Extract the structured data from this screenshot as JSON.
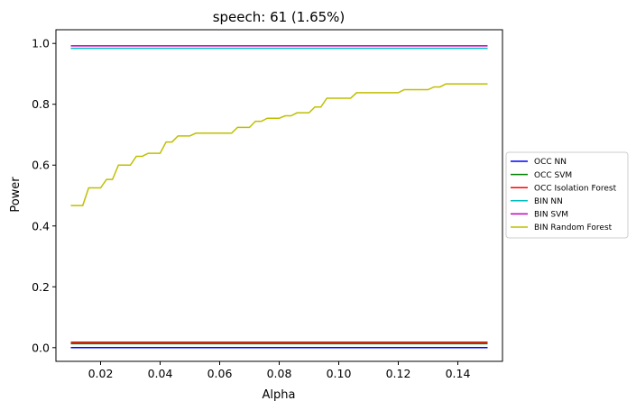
{
  "chart_data": {
    "type": "line",
    "title": "speech: 61 (1.65%)",
    "xlabel": "Alpha",
    "ylabel": "Power",
    "xlim": [
      0.005,
      0.155
    ],
    "ylim": [
      -0.045,
      1.045
    ],
    "xticks": [
      0.02,
      0.04,
      0.06,
      0.08,
      0.1,
      0.12,
      0.14
    ],
    "xtick_labels": [
      "0.02",
      "0.04",
      "0.06",
      "0.08",
      "0.10",
      "0.12",
      "0.14"
    ],
    "yticks": [
      0.0,
      0.2,
      0.4,
      0.6,
      0.8,
      1.0
    ],
    "ytick_labels": [
      "0.0",
      "0.2",
      "0.4",
      "0.6",
      "0.8",
      "1.0"
    ],
    "grid": false,
    "legend_position": "center-right-outside",
    "x": [
      0.01,
      0.012,
      0.014,
      0.016,
      0.018,
      0.02,
      0.022,
      0.024,
      0.026,
      0.028,
      0.03,
      0.032,
      0.034,
      0.036,
      0.038,
      0.04,
      0.042,
      0.044,
      0.046,
      0.048,
      0.05,
      0.052,
      0.054,
      0.056,
      0.058,
      0.06,
      0.062,
      0.064,
      0.066,
      0.068,
      0.07,
      0.072,
      0.074,
      0.076,
      0.078,
      0.08,
      0.082,
      0.084,
      0.086,
      0.088,
      0.09,
      0.092,
      0.094,
      0.096,
      0.098,
      0.1,
      0.102,
      0.104,
      0.106,
      0.108,
      0.11,
      0.112,
      0.114,
      0.116,
      0.118,
      0.12,
      0.122,
      0.124,
      0.126,
      0.128,
      0.13,
      0.132,
      0.134,
      0.136,
      0.138,
      0.14,
      0.142,
      0.144,
      0.146,
      0.148,
      0.15
    ],
    "series": [
      {
        "name": "OCC NN",
        "color": "#0000ff",
        "constant": 0.0
      },
      {
        "name": "OCC SVM",
        "color": "#008000",
        "constant": 0.013
      },
      {
        "name": "OCC Isolation Forest",
        "color": "#ff0000",
        "constant": 0.018
      },
      {
        "name": "BIN NN",
        "color": "#00bfbf",
        "constant": 0.984
      },
      {
        "name": "BIN SVM",
        "color": "#bf00bf",
        "constant": 0.992
      },
      {
        "name": "BIN Random Forest",
        "color": "#bfbf00",
        "values": [
          0.467,
          0.467,
          0.467,
          0.525,
          0.525,
          0.525,
          0.553,
          0.553,
          0.6,
          0.6,
          0.6,
          0.629,
          0.629,
          0.639,
          0.639,
          0.639,
          0.676,
          0.676,
          0.696,
          0.696,
          0.696,
          0.705,
          0.705,
          0.705,
          0.705,
          0.705,
          0.705,
          0.705,
          0.724,
          0.724,
          0.724,
          0.744,
          0.744,
          0.754,
          0.754,
          0.754,
          0.762,
          0.762,
          0.772,
          0.772,
          0.772,
          0.791,
          0.791,
          0.82,
          0.82,
          0.82,
          0.82,
          0.82,
          0.838,
          0.838,
          0.838,
          0.838,
          0.838,
          0.838,
          0.838,
          0.838,
          0.848,
          0.848,
          0.848,
          0.848,
          0.848,
          0.857,
          0.857,
          0.867,
          0.867,
          0.867,
          0.867,
          0.867,
          0.867,
          0.867,
          0.867
        ]
      }
    ]
  }
}
